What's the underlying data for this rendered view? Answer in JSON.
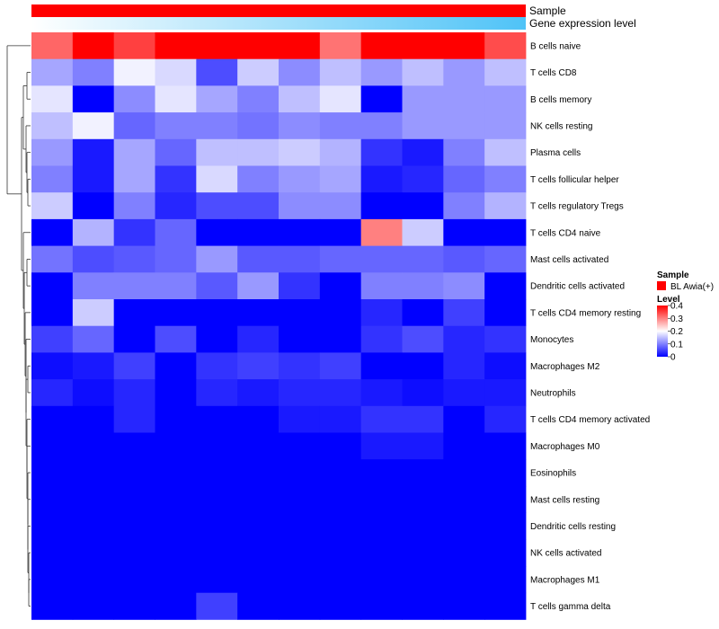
{
  "chart_data": {
    "type": "heatmap",
    "annotations": [
      {
        "label": "Sample",
        "values": [
          "BL Awia(+)",
          "BL Awia(+)",
          "BL Awia(+)",
          "BL Awia(+)",
          "BL Awia(+)",
          "BL Awia(+)",
          "BL Awia(+)",
          "BL Awia(+)",
          "BL Awia(+)",
          "BL Awia(+)",
          "BL Awia(+)",
          "BL Awia(+)"
        ]
      },
      {
        "label": "Gene expression level"
      }
    ],
    "rows": [
      "B cells naive",
      "T cells CD8",
      "B cells memory",
      "NK cells resting",
      "Plasma cells",
      "T cells follicular helper",
      "T cells regulatory  Tregs",
      "T cells CD4 naive",
      "Mast cells activated",
      "Dendritic cells activated",
      "T cells CD4 memory resting",
      "Monocytes",
      "Macrophages M2",
      "Neutrophils",
      "T cells CD4 memory activated",
      "Macrophages M0",
      "Eosinophils",
      "Mast cells resting",
      "Dendritic cells resting",
      "NK cells activated",
      "Macrophages M1",
      "T cells gamma delta"
    ],
    "values": [
      [
        0.32,
        0.44,
        0.35,
        0.41,
        0.42,
        0.44,
        0.4,
        0.31,
        0.43,
        0.44,
        0.44,
        0.34
      ],
      [
        0.13,
        0.1,
        0.19,
        0.17,
        0.06,
        0.16,
        0.11,
        0.15,
        0.12,
        0.15,
        0.12,
        0.15
      ],
      [
        0.18,
        0.0,
        0.11,
        0.18,
        0.13,
        0.1,
        0.15,
        0.18,
        0.0,
        0.12,
        0.12,
        0.12
      ],
      [
        0.15,
        0.19,
        0.08,
        0.1,
        0.1,
        0.09,
        0.11,
        0.1,
        0.1,
        0.12,
        0.12,
        0.12
      ],
      [
        0.12,
        0.02,
        0.13,
        0.08,
        0.15,
        0.15,
        0.16,
        0.14,
        0.04,
        0.02,
        0.1,
        0.15
      ],
      [
        0.1,
        0.02,
        0.13,
        0.04,
        0.17,
        0.1,
        0.12,
        0.13,
        0.02,
        0.03,
        0.08,
        0.1
      ],
      [
        0.16,
        0.0,
        0.1,
        0.03,
        0.06,
        0.06,
        0.11,
        0.11,
        0.0,
        0.0,
        0.1,
        0.14
      ],
      [
        0.0,
        0.14,
        0.04,
        0.08,
        0.0,
        0.0,
        0.0,
        0.0,
        0.3,
        0.16,
        0.0,
        0.0
      ],
      [
        0.09,
        0.06,
        0.07,
        0.08,
        0.12,
        0.07,
        0.07,
        0.08,
        0.08,
        0.08,
        0.07,
        0.08
      ],
      [
        0.0,
        0.1,
        0.1,
        0.1,
        0.07,
        0.12,
        0.04,
        0.0,
        0.1,
        0.1,
        0.11,
        0.0
      ],
      [
        0.0,
        0.16,
        0.0,
        0.0,
        0.0,
        0.0,
        0.0,
        0.0,
        0.03,
        0.0,
        0.05,
        0.0
      ],
      [
        0.05,
        0.08,
        0.0,
        0.06,
        0.0,
        0.03,
        0.0,
        0.0,
        0.04,
        0.06,
        0.03,
        0.04
      ],
      [
        0.01,
        0.02,
        0.05,
        0.0,
        0.04,
        0.05,
        0.04,
        0.05,
        0.0,
        0.0,
        0.03,
        0.01
      ],
      [
        0.03,
        0.01,
        0.03,
        0.0,
        0.03,
        0.02,
        0.03,
        0.03,
        0.02,
        0.01,
        0.02,
        0.02
      ],
      [
        0.0,
        0.0,
        0.03,
        0.0,
        0.0,
        0.0,
        0.02,
        0.02,
        0.04,
        0.04,
        0.0,
        0.03
      ],
      [
        0.0,
        0.0,
        0.0,
        0.0,
        0.0,
        0.0,
        0.0,
        0.0,
        0.02,
        0.02,
        0.0,
        0.0
      ],
      [
        0.0,
        0.0,
        0.0,
        0.0,
        0.0,
        0.0,
        0.0,
        0.0,
        0.0,
        0.0,
        0.0,
        0.0
      ],
      [
        0.0,
        0.0,
        0.0,
        0.0,
        0.0,
        0.0,
        0.0,
        0.0,
        0.0,
        0.0,
        0.0,
        0.0
      ],
      [
        0.0,
        0.0,
        0.0,
        0.0,
        0.0,
        0.0,
        0.0,
        0.0,
        0.0,
        0.0,
        0.0,
        0.0
      ],
      [
        0.0,
        0.0,
        0.0,
        0.0,
        0.0,
        0.0,
        0.0,
        0.0,
        0.0,
        0.0,
        0.0,
        0.0
      ],
      [
        0.0,
        0.0,
        0.0,
        0.0,
        0.0,
        0.0,
        0.0,
        0.0,
        0.0,
        0.0,
        0.0,
        0.0
      ],
      [
        0.0,
        0.0,
        0.0,
        0.0,
        0.05,
        0.0,
        0.0,
        0.0,
        0.0,
        0.0,
        0.0,
        0.0
      ]
    ],
    "color_scale": {
      "stops": [
        0,
        0.2,
        0.4
      ],
      "colors": [
        "#0000ff",
        "#ffffff",
        "#ff0000"
      ]
    },
    "legend": {
      "position": "right",
      "sample": {
        "title": "Sample",
        "entries": [
          {
            "label": "BL Awia(+)",
            "color": "#ff0000"
          }
        ]
      },
      "level": {
        "title": "Level",
        "ticks": [
          "0",
          "0.1",
          "0.2",
          "0.3",
          "0.4"
        ],
        "range": [
          0,
          0.4
        ]
      }
    },
    "annotation_colors": {
      "sample": "#ff0000",
      "gradient_start": "#ffffff",
      "gradient_end": "#4fc3f7"
    },
    "row_dendrogram": true
  }
}
